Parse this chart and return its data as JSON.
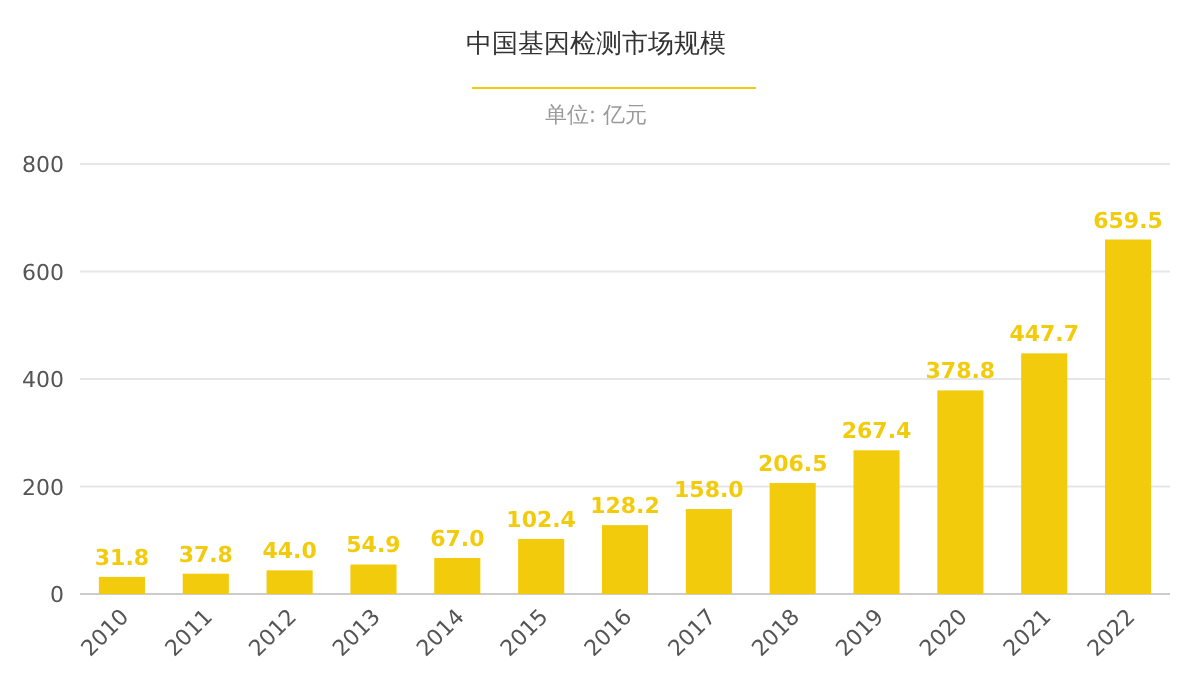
{
  "chart_data": {
    "type": "bar",
    "title": "中国基因检测市场规模",
    "subtitle": "单位: 亿元",
    "categories": [
      "2010",
      "2011",
      "2012",
      "2013",
      "2014",
      "2015",
      "2016",
      "2017",
      "2018",
      "2019",
      "2020",
      "2021",
      "2022"
    ],
    "values": [
      31.8,
      37.8,
      44.0,
      54.9,
      67.0,
      102.4,
      128.2,
      158.0,
      206.5,
      267.4,
      378.8,
      447.7,
      659.5
    ],
    "value_labels": [
      "31.8",
      "37.8",
      "44.0",
      "54.9",
      "67.0",
      "102.4",
      "128.2",
      "158.0",
      "206.5",
      "267.4",
      "378.8",
      "447.7",
      "659.5"
    ],
    "color": "#f2cc0c",
    "ylim": [
      0,
      800
    ],
    "yticks": [
      0,
      200,
      400,
      600,
      800
    ],
    "grid": "y"
  }
}
